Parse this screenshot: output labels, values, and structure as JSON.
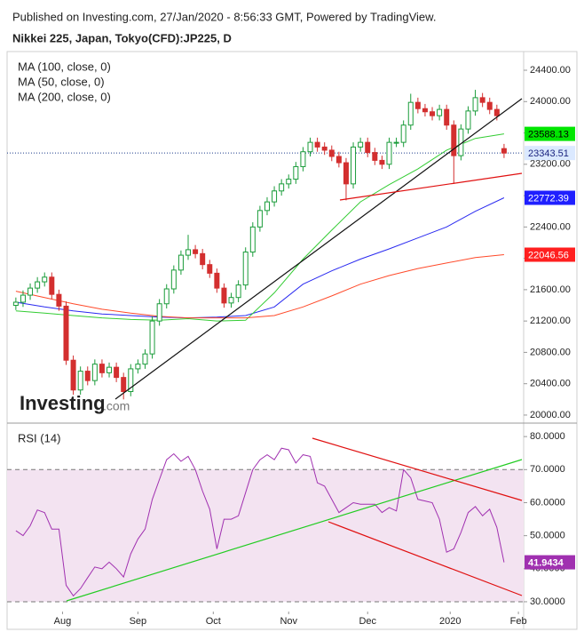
{
  "header": {
    "published": "Published on Investing.com, 27/Jan/2020 - 8:56:33 GMT, Powered by TradingView.",
    "symbol": "Nikkei 225, Japan, Tokyo(CFD):JP225, D"
  },
  "logo": {
    "brand": "Investing",
    "suffix": ".com"
  },
  "chart_data": [
    {
      "type": "candlestick",
      "x": [
        0,
        2,
        4,
        6,
        8,
        10,
        12,
        14,
        16,
        18,
        20,
        22,
        24,
        26,
        28,
        30,
        32,
        34,
        36,
        38,
        40,
        42,
        44,
        46,
        48,
        50,
        52,
        54,
        56,
        58,
        60,
        62,
        64,
        66,
        68,
        70,
        72,
        74,
        76,
        78,
        80,
        82,
        84,
        86,
        88,
        90,
        92,
        94,
        96,
        98,
        100,
        102,
        104,
        106,
        108,
        110,
        112,
        114,
        116,
        118,
        120,
        122,
        124,
        126,
        128,
        130,
        132,
        134,
        136
      ],
      "open": [
        21400,
        21440,
        21530,
        21620,
        21700,
        21760,
        21540,
        21390,
        20700,
        20320,
        20560,
        20440,
        20650,
        20540,
        20610,
        20480,
        20300,
        20590,
        20650,
        20780,
        21200,
        21420,
        21610,
        21850,
        22040,
        22110,
        22060,
        21920,
        21810,
        21620,
        21430,
        21500,
        21660,
        22080,
        22400,
        22610,
        22720,
        22860,
        22950,
        23010,
        23170,
        23360,
        23480,
        23420,
        23380,
        23300,
        23220,
        22950,
        23420,
        23480,
        23350,
        23250,
        23200,
        23480,
        23480,
        23700,
        23990,
        23910,
        23870,
        23820,
        23900,
        23700,
        23310,
        23650,
        23880,
        24050,
        23990,
        23900,
        23400
      ],
      "high": [
        21500,
        21590,
        21680,
        21760,
        21820,
        21820,
        21600,
        21450,
        20760,
        20620,
        20620,
        20710,
        20710,
        20670,
        20670,
        20540,
        20650,
        20710,
        20840,
        21260,
        21480,
        21670,
        21910,
        22100,
        22300,
        22170,
        22120,
        21980,
        21870,
        21680,
        21560,
        21720,
        22140,
        22460,
        22670,
        22780,
        22920,
        23010,
        23070,
        23230,
        23420,
        23540,
        23540,
        23480,
        23440,
        23360,
        23280,
        23480,
        23540,
        23540,
        23410,
        23310,
        23540,
        23540,
        23760,
        24100,
        24050,
        23970,
        23930,
        23960,
        23960,
        23760,
        23710,
        23940,
        24150,
        24110,
        24050,
        23960,
        23460
      ],
      "low": [
        21340,
        21380,
        21470,
        21560,
        21640,
        21480,
        21330,
        20640,
        20260,
        20260,
        20380,
        20380,
        20480,
        20480,
        20420,
        20200,
        20240,
        20530,
        20590,
        20720,
        21140,
        21360,
        21550,
        21790,
        21980,
        22000,
        21860,
        21750,
        21560,
        21370,
        21370,
        21440,
        21600,
        22020,
        22340,
        22550,
        22660,
        22800,
        22890,
        22950,
        23110,
        23300,
        23360,
        23320,
        23240,
        23160,
        22740,
        22890,
        23360,
        23290,
        23190,
        23140,
        23140,
        23420,
        23420,
        23640,
        23850,
        23810,
        23760,
        23760,
        23640,
        22950,
        23250,
        23590,
        23820,
        23930,
        23840,
        23760,
        23280
      ],
      "close": [
        21440,
        21530,
        21620,
        21700,
        21760,
        21540,
        21390,
        20700,
        20320,
        20560,
        20440,
        20650,
        20540,
        20610,
        20480,
        20300,
        20590,
        20650,
        20780,
        21200,
        21420,
        21610,
        21850,
        22040,
        22110,
        22060,
        21920,
        21810,
        21620,
        21430,
        21500,
        21660,
        22080,
        22400,
        22610,
        22720,
        22860,
        22950,
        23010,
        23170,
        23360,
        23480,
        23420,
        23380,
        23300,
        23220,
        22950,
        23420,
        23480,
        23350,
        23250,
        23200,
        23480,
        23480,
        23700,
        23990,
        23910,
        23870,
        23820,
        23900,
        23700,
        23310,
        23650,
        23880,
        24050,
        23990,
        23900,
        23820,
        23343.51
      ],
      "up_color": "#1a9c3a",
      "down_color": "#d32f2f",
      "series": [
        {
          "name": "MA (100, close, 0)",
          "color": "#2a2af0",
          "x": [
            0,
            8,
            16,
            24,
            32,
            40,
            48,
            56,
            64,
            72,
            80,
            88,
            96,
            104,
            112,
            120,
            128,
            136
          ],
          "values": [
            21440,
            21380,
            21330,
            21290,
            21270,
            21250,
            21240,
            21250,
            21270,
            21380,
            21670,
            21840,
            21990,
            22120,
            22260,
            22400,
            22600,
            22772.39
          ]
        },
        {
          "name": "MA (50, close, 0)",
          "color": "#33cc33",
          "x": [
            0,
            8,
            16,
            24,
            32,
            40,
            48,
            56,
            64,
            72,
            80,
            88,
            96,
            104,
            112,
            120,
            128,
            136
          ],
          "values": [
            21330,
            21300,
            21270,
            21240,
            21220,
            21210,
            21230,
            21200,
            21210,
            21560,
            21990,
            22360,
            22720,
            22940,
            23140,
            23380,
            23530,
            23588.13
          ]
        },
        {
          "name": "MA (200, close, 0)",
          "color": "#ff4a2a",
          "x": [
            0,
            8,
            16,
            24,
            32,
            40,
            48,
            56,
            64,
            72,
            80,
            88,
            96,
            104,
            112,
            120,
            128,
            136
          ],
          "values": [
            21580,
            21500,
            21420,
            21350,
            21300,
            21260,
            21240,
            21240,
            21240,
            21270,
            21380,
            21520,
            21670,
            21780,
            21870,
            21940,
            22010,
            22046.56
          ]
        }
      ],
      "price_tags": [
        {
          "value": 23588.13,
          "color": "#00e600",
          "text_color": "#000000"
        },
        {
          "value": 23343.51,
          "color": "#dbe9ff",
          "text_color": "#1a237e"
        },
        {
          "value": 22772.39,
          "color": "#1f1fff",
          "text_color": "#ffffff"
        },
        {
          "value": 22046.56,
          "color": "#ff1f1f",
          "text_color": "#ffffff"
        }
      ],
      "xlim": [
        -2.44,
        141.46
      ],
      "ylim": [
        19920,
        24593
      ],
      "yticks": [
        {
          "value": 20000,
          "label": "20000.00"
        },
        {
          "value": 20400,
          "label": "20400.00"
        },
        {
          "value": 20800,
          "label": "20800.00"
        },
        {
          "value": 21200,
          "label": "21200.00"
        },
        {
          "value": 21600,
          "label": "21600.00"
        },
        {
          "value": 22000,
          "label": "22000.00"
        },
        {
          "value": 22400,
          "label": "22400.00"
        },
        {
          "value": 22800,
          "label": "22800.00"
        },
        {
          "value": 23200,
          "label": "23200.00"
        },
        {
          "value": 23600,
          "label": "23600.00"
        },
        {
          "value": 24000,
          "label": "24000.00"
        },
        {
          "value": 24400,
          "label": "24400.00"
        }
      ]
    },
    {
      "type": "line",
      "title": "RSI (14)",
      "color": "#a030b0",
      "x": [
        0,
        2,
        4,
        6,
        8,
        10,
        12,
        14,
        16,
        18,
        20,
        22,
        24,
        26,
        28,
        30,
        32,
        34,
        36,
        38,
        40,
        42,
        44,
        46,
        48,
        50,
        52,
        54,
        56,
        58,
        60,
        62,
        64,
        66,
        68,
        70,
        72,
        74,
        76,
        78,
        80,
        82,
        84,
        86,
        88,
        90,
        92,
        94,
        96,
        98,
        100,
        102,
        104,
        106,
        108,
        110,
        112,
        114,
        116,
        118,
        120,
        122,
        124,
        126,
        128,
        130,
        132,
        134,
        136
      ],
      "values": [
        51.5,
        50,
        53,
        57.8,
        57,
        52,
        52,
        35,
        31.8,
        34,
        37.3,
        40.5,
        40,
        42,
        40,
        37.5,
        44.5,
        49,
        52,
        61,
        67,
        73,
        74.8,
        72.5,
        74,
        70,
        63.5,
        58,
        46,
        55,
        55,
        56,
        63,
        70,
        73,
        74.5,
        73,
        76.5,
        76,
        72,
        74.5,
        74,
        66,
        65,
        61,
        57,
        58.5,
        60,
        59.5,
        59.5,
        59.5,
        57,
        58.5,
        57.5,
        70,
        67.5,
        61,
        60.5,
        60,
        55,
        45,
        46,
        51,
        57,
        58.8,
        56,
        58,
        52.5,
        41.9434
      ],
      "last_value_label": "41.9434",
      "levels": [
        30,
        70
      ],
      "band_color": "#f3e3f1",
      "xlim": [
        -2.44,
        141.46
      ],
      "ylim": [
        27.3,
        83
      ],
      "xticks": [
        {
          "value": 13,
          "label": "Aug"
        },
        {
          "value": 34,
          "label": "Sep"
        },
        {
          "value": 55,
          "label": "Oct"
        },
        {
          "value": 76,
          "label": "Nov"
        },
        {
          "value": 98,
          "label": "Dec"
        },
        {
          "value": 121,
          "label": "2020"
        },
        {
          "value": 140,
          "label": "Feb"
        }
      ],
      "yticks": [
        {
          "value": 30,
          "label": "30.0000"
        },
        {
          "value": 40,
          "label": "40.0000"
        },
        {
          "value": 50,
          "label": "50.0000"
        },
        {
          "value": 60,
          "label": "60.0000"
        },
        {
          "value": 70,
          "label": "70.0000"
        },
        {
          "value": 80,
          "label": "80.0000"
        }
      ]
    }
  ]
}
